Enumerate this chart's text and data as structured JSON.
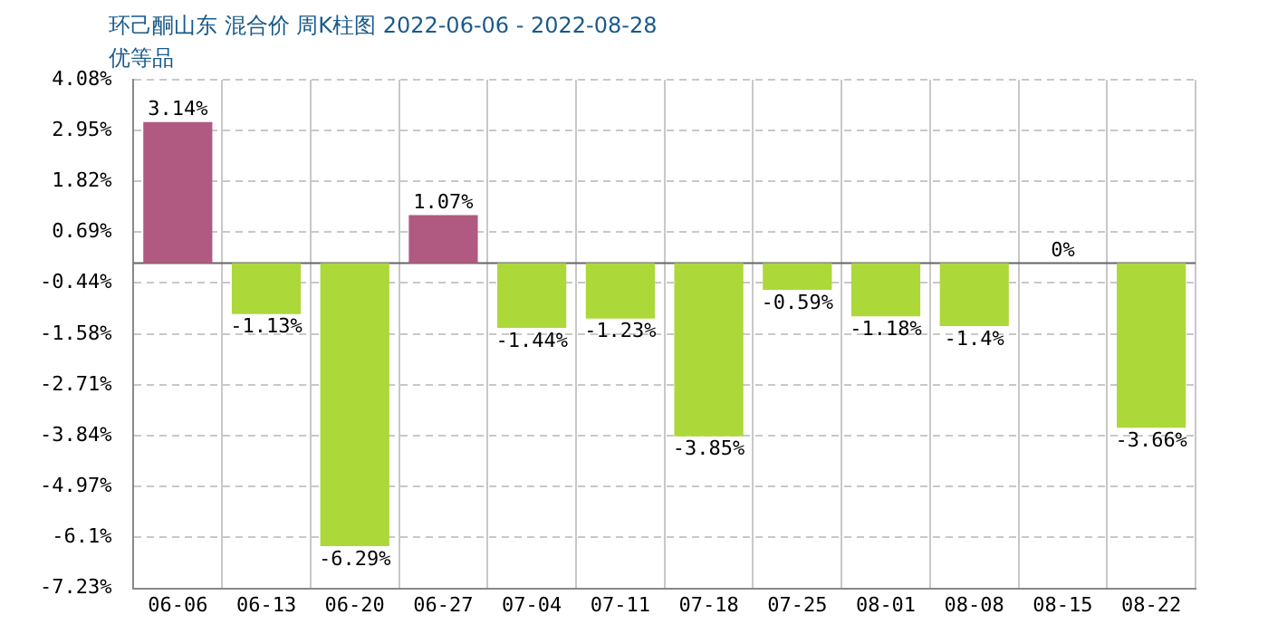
{
  "chart_data": {
    "type": "bar",
    "title": "环己酮山东 混合价 周K柱图 2022-06-06 - 2022-08-28",
    "subtitle": "优等品",
    "categories": [
      "06-06",
      "06-13",
      "06-20",
      "06-27",
      "07-04",
      "07-11",
      "07-18",
      "07-25",
      "08-01",
      "08-08",
      "08-15",
      "08-22"
    ],
    "values": [
      3.14,
      -1.13,
      -6.29,
      1.07,
      -1.44,
      -1.23,
      -3.85,
      -0.59,
      -1.18,
      -1.4,
      0,
      -3.66
    ],
    "colors": [
      "#b05a82",
      "#acd83a",
      "#acd83a",
      "#b05a82",
      "#acd83a",
      "#acd83a",
      "#acd83a",
      "#acd83a",
      "#acd83a",
      "#acd83a",
      "#acd83a",
      "#acd83a"
    ],
    "value_labels": [
      "3.14%",
      "-1.13%",
      "-6.29%",
      "1.07%",
      "-1.44%",
      "-1.23%",
      "-3.85%",
      "-0.59%",
      "-1.18%",
      "-1.4%",
      "0%",
      "-3.66%"
    ],
    "ylim": [
      -7.23,
      4.08
    ],
    "yticks": [
      {
        "value": 4.08,
        "label": "4.08%"
      },
      {
        "value": 2.95,
        "label": "2.95%"
      },
      {
        "value": 1.82,
        "label": "1.82%"
      },
      {
        "value": 0.69,
        "label": "0.69%"
      },
      {
        "value": -0.44,
        "label": "-0.44%"
      },
      {
        "value": -1.58,
        "label": "-1.58%"
      },
      {
        "value": -2.71,
        "label": "-2.71%"
      },
      {
        "value": -3.84,
        "label": "-3.84%"
      },
      {
        "value": -4.97,
        "label": "-4.97%"
      },
      {
        "value": -6.1,
        "label": "-6.1%"
      },
      {
        "value": -7.23,
        "label": "-7.23%"
      }
    ],
    "ref_lines": [
      {
        "axis": "y",
        "value": 0,
        "color": "#666666"
      }
    ],
    "grid": true,
    "legend": false
  }
}
